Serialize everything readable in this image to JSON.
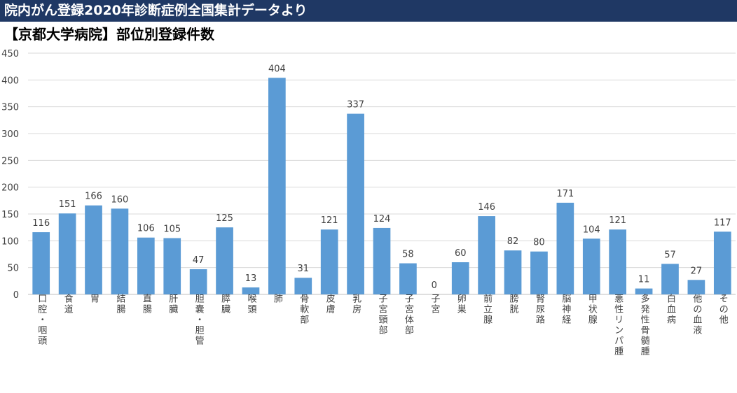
{
  "banner": {
    "title": "院内がん登録2020年診断症例全国集計データより"
  },
  "colors": {
    "banner_bg": "#1f3864",
    "bar": "#5b9bd5",
    "grid": "#d9d9d9",
    "axis_text": "#404040"
  },
  "chart_data": {
    "type": "bar",
    "title": "【京都大学病院】部位別登録件数",
    "xlabel": "",
    "ylabel": "",
    "ylim": [
      0,
      450
    ],
    "yticks": [
      0,
      50,
      100,
      150,
      200,
      250,
      300,
      350,
      400,
      450
    ],
    "grid": true,
    "legend": "none",
    "categories": [
      "口腔・咽頭",
      "食道",
      "胃",
      "結腸",
      "直腸",
      "肝臓",
      "胆嚢・胆管",
      "膵臓",
      "喉頭",
      "肺",
      "骨軟部",
      "皮膚",
      "乳房",
      "子宮頸部",
      "子宮体部",
      "子宮",
      "卵巣",
      "前立腺",
      "膀胱",
      "腎尿路",
      "脳神経",
      "甲状腺",
      "悪性リンパ腫",
      "多発性骨髄腫",
      "白血病",
      "他の血液",
      "その他"
    ],
    "values": [
      116,
      151,
      166,
      160,
      106,
      105,
      47,
      125,
      13,
      404,
      31,
      121,
      337,
      124,
      58,
      0,
      60,
      146,
      82,
      80,
      171,
      104,
      121,
      11,
      57,
      27,
      117
    ]
  }
}
